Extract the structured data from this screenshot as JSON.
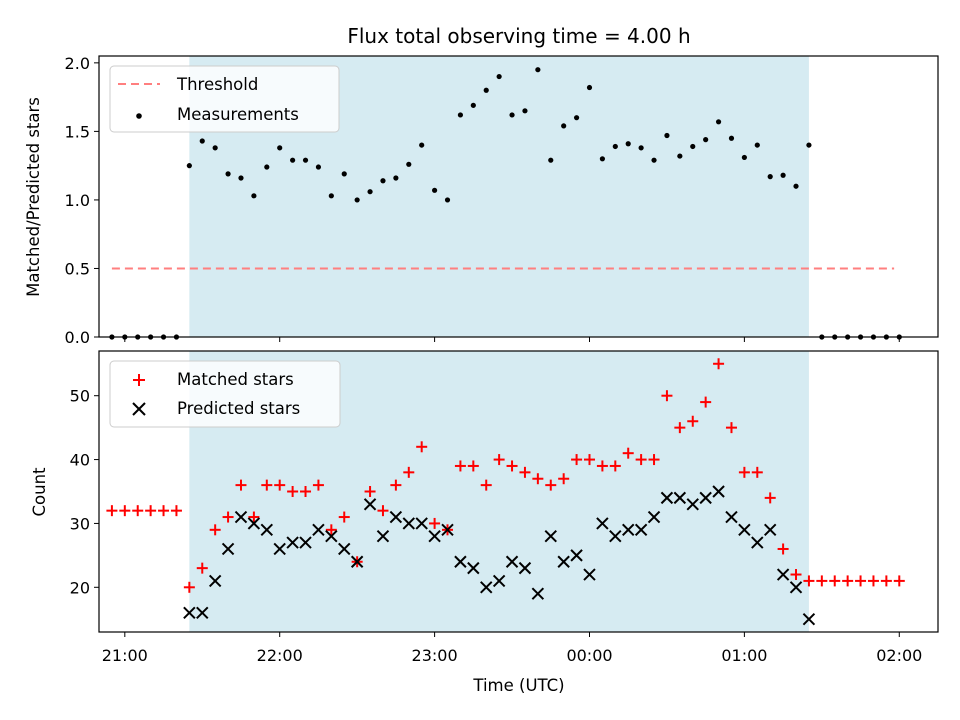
{
  "chart_data": [
    {
      "type": "scatter",
      "title": "Flux total observing time = 4.00 h",
      "ylabel": "Matched/Predicted stars",
      "xlabel": "",
      "ylim": [
        0,
        2.05
      ],
      "y_ticks": [
        "0.0",
        "0.5",
        "1.0",
        "1.5",
        "2.0"
      ],
      "y_tick_values": [
        0,
        0.5,
        1.0,
        1.5,
        2.0
      ],
      "legend_position": "top-left",
      "shaded_interval": [
        "21:25",
        "01:25"
      ],
      "shade_color": "#add8e6",
      "threshold": {
        "name": "Threshold",
        "value": 0.5,
        "x_start": "20:55",
        "x_end": "01:58",
        "color": "#ff7f7f"
      },
      "series": [
        {
          "name": "Measurements",
          "color": "#000000",
          "points": [
            [
              "20:55",
              0.0
            ],
            [
              "21:00",
              0.0
            ],
            [
              "21:05",
              0.0
            ],
            [
              "21:10",
              0.0
            ],
            [
              "21:15",
              0.0
            ],
            [
              "21:20",
              0.0
            ],
            [
              "21:25",
              1.25
            ],
            [
              "21:30",
              1.43
            ],
            [
              "21:35",
              1.38
            ],
            [
              "21:40",
              1.19
            ],
            [
              "21:45",
              1.16
            ],
            [
              "21:50",
              1.03
            ],
            [
              "21:55",
              1.24
            ],
            [
              "22:00",
              1.38
            ],
            [
              "22:05",
              1.29
            ],
            [
              "22:10",
              1.29
            ],
            [
              "22:15",
              1.24
            ],
            [
              "22:20",
              1.03
            ],
            [
              "22:25",
              1.19
            ],
            [
              "22:30",
              1.0
            ],
            [
              "22:35",
              1.06
            ],
            [
              "22:40",
              1.14
            ],
            [
              "22:45",
              1.16
            ],
            [
              "22:50",
              1.26
            ],
            [
              "22:55",
              1.4
            ],
            [
              "23:00",
              1.07
            ],
            [
              "23:05",
              1.0
            ],
            [
              "23:10",
              1.62
            ],
            [
              "23:15",
              1.69
            ],
            [
              "23:20",
              1.8
            ],
            [
              "23:25",
              1.9
            ],
            [
              "23:30",
              1.62
            ],
            [
              "23:35",
              1.65
            ],
            [
              "23:40",
              1.95
            ],
            [
              "23:45",
              1.29
            ],
            [
              "23:50",
              1.54
            ],
            [
              "23:55",
              1.6
            ],
            [
              "00:00",
              1.82
            ],
            [
              "00:05",
              1.3
            ],
            [
              "00:10",
              1.39
            ],
            [
              "00:15",
              1.41
            ],
            [
              "00:20",
              1.38
            ],
            [
              "00:25",
              1.29
            ],
            [
              "00:30",
              1.47
            ],
            [
              "00:35",
              1.32
            ],
            [
              "00:40",
              1.39
            ],
            [
              "00:45",
              1.44
            ],
            [
              "00:50",
              1.57
            ],
            [
              "00:55",
              1.45
            ],
            [
              "01:00",
              1.31
            ],
            [
              "01:05",
              1.4
            ],
            [
              "01:10",
              1.17
            ],
            [
              "01:15",
              1.18
            ],
            [
              "01:20",
              1.1
            ],
            [
              "01:25",
              1.4
            ],
            [
              "01:30",
              0.0
            ],
            [
              "01:35",
              0.0
            ],
            [
              "01:40",
              0.0
            ],
            [
              "01:45",
              0.0
            ],
            [
              "01:50",
              0.0
            ],
            [
              "01:55",
              0.0
            ],
            [
              "02:00",
              0.0
            ]
          ]
        }
      ]
    },
    {
      "type": "scatter",
      "title": "",
      "ylabel": "Count",
      "xlabel": "Time (UTC)",
      "ylim": [
        13,
        57
      ],
      "y_ticks": [
        "20",
        "30",
        "40",
        "50"
      ],
      "y_tick_values": [
        20,
        30,
        40,
        50
      ],
      "x_ticks": [
        "21:00",
        "22:00",
        "23:00",
        "00:00",
        "01:00",
        "02:00"
      ],
      "x_tick_values": [
        "21:00",
        "22:00",
        "23:00",
        "00:00",
        "01:00",
        "02:00"
      ],
      "xlim": [
        "20:50",
        "02:15"
      ],
      "legend_position": "top-left",
      "series": [
        {
          "name": "Matched stars",
          "marker": "plus",
          "color": "#ff0000",
          "points": [
            [
              "20:55",
              32
            ],
            [
              "21:00",
              32
            ],
            [
              "21:05",
              32
            ],
            [
              "21:10",
              32
            ],
            [
              "21:15",
              32
            ],
            [
              "21:20",
              32
            ],
            [
              "21:25",
              20
            ],
            [
              "21:30",
              23
            ],
            [
              "21:35",
              29
            ],
            [
              "21:40",
              31
            ],
            [
              "21:45",
              36
            ],
            [
              "21:50",
              31
            ],
            [
              "21:55",
              36
            ],
            [
              "22:00",
              36
            ],
            [
              "22:05",
              35
            ],
            [
              "22:10",
              35
            ],
            [
              "22:15",
              36
            ],
            [
              "22:20",
              29
            ],
            [
              "22:25",
              31
            ],
            [
              "22:30",
              24
            ],
            [
              "22:35",
              35
            ],
            [
              "22:40",
              32
            ],
            [
              "22:45",
              36
            ],
            [
              "22:50",
              38
            ],
            [
              "22:55",
              42
            ],
            [
              "23:00",
              30
            ],
            [
              "23:05",
              29
            ],
            [
              "23:10",
              39
            ],
            [
              "23:15",
              39
            ],
            [
              "23:20",
              36
            ],
            [
              "23:25",
              40
            ],
            [
              "23:30",
              39
            ],
            [
              "23:35",
              38
            ],
            [
              "23:40",
              37
            ],
            [
              "23:45",
              36
            ],
            [
              "23:50",
              37
            ],
            [
              "23:55",
              40
            ],
            [
              "00:00",
              40
            ],
            [
              "00:05",
              39
            ],
            [
              "00:10",
              39
            ],
            [
              "00:15",
              41
            ],
            [
              "00:20",
              40
            ],
            [
              "00:25",
              40
            ],
            [
              "00:30",
              50
            ],
            [
              "00:35",
              45
            ],
            [
              "00:40",
              46
            ],
            [
              "00:45",
              49
            ],
            [
              "00:50",
              55
            ],
            [
              "00:55",
              45
            ],
            [
              "01:00",
              38
            ],
            [
              "01:05",
              38
            ],
            [
              "01:10",
              34
            ],
            [
              "01:15",
              26
            ],
            [
              "01:20",
              22
            ],
            [
              "01:25",
              21
            ],
            [
              "01:30",
              21
            ],
            [
              "01:35",
              21
            ],
            [
              "01:40",
              21
            ],
            [
              "01:45",
              21
            ],
            [
              "01:50",
              21
            ],
            [
              "01:55",
              21
            ],
            [
              "02:00",
              21
            ]
          ]
        },
        {
          "name": "Predicted stars",
          "marker": "x",
          "color": "#000000",
          "points": [
            [
              "21:25",
              16
            ],
            [
              "21:30",
              16
            ],
            [
              "21:35",
              21
            ],
            [
              "21:40",
              26
            ],
            [
              "21:45",
              31
            ],
            [
              "21:50",
              30
            ],
            [
              "21:55",
              29
            ],
            [
              "22:00",
              26
            ],
            [
              "22:05",
              27
            ],
            [
              "22:10",
              27
            ],
            [
              "22:15",
              29
            ],
            [
              "22:20",
              28
            ],
            [
              "22:25",
              26
            ],
            [
              "22:30",
              24
            ],
            [
              "22:35",
              33
            ],
            [
              "22:40",
              28
            ],
            [
              "22:45",
              31
            ],
            [
              "22:50",
              30
            ],
            [
              "22:55",
              30
            ],
            [
              "23:00",
              28
            ],
            [
              "23:05",
              29
            ],
            [
              "23:10",
              24
            ],
            [
              "23:15",
              23
            ],
            [
              "23:20",
              20
            ],
            [
              "23:25",
              21
            ],
            [
              "23:30",
              24
            ],
            [
              "23:35",
              23
            ],
            [
              "23:40",
              19
            ],
            [
              "23:45",
              28
            ],
            [
              "23:50",
              24
            ],
            [
              "23:55",
              25
            ],
            [
              "00:00",
              22
            ],
            [
              "00:05",
              30
            ],
            [
              "00:10",
              28
            ],
            [
              "00:15",
              29
            ],
            [
              "00:20",
              29
            ],
            [
              "00:25",
              31
            ],
            [
              "00:30",
              34
            ],
            [
              "00:35",
              34
            ],
            [
              "00:40",
              33
            ],
            [
              "00:45",
              34
            ],
            [
              "00:50",
              35
            ],
            [
              "00:55",
              31
            ],
            [
              "01:00",
              29
            ],
            [
              "01:05",
              27
            ],
            [
              "01:10",
              29
            ],
            [
              "01:15",
              22
            ],
            [
              "01:20",
              20
            ],
            [
              "01:25",
              15
            ]
          ]
        }
      ]
    }
  ]
}
